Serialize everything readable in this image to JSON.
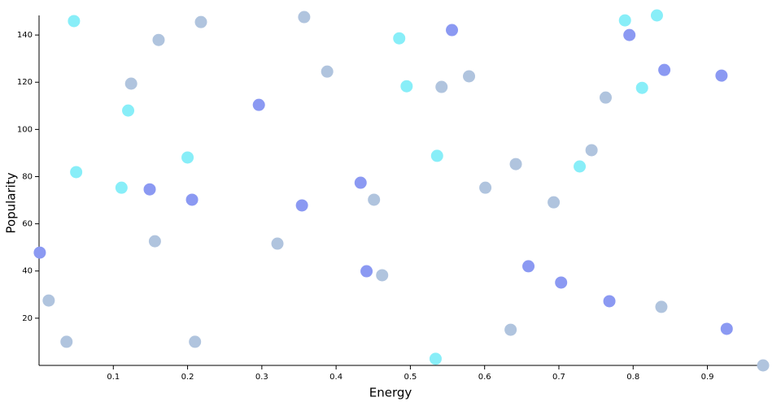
{
  "chart_data": {
    "type": "scatter",
    "x_label": "Energy",
    "y_label": "Popularity",
    "xlim": [
      0,
      0.975
    ],
    "ylim": [
      0,
      148.3
    ],
    "xticks": [
      0.1,
      0.2,
      0.3,
      0.4,
      0.5,
      0.6,
      0.7,
      0.8,
      0.9
    ],
    "yticks": [
      20,
      40,
      60,
      80,
      100,
      120,
      140
    ],
    "series": [
      {
        "color": "#88eef8",
        "x": [
          0.047,
          0.05,
          0.111,
          0.12,
          0.2,
          0.485,
          0.495,
          0.536,
          0.534,
          0.728,
          0.789,
          0.812,
          0.832
        ],
        "values": [
          145.9,
          81.9,
          75.3,
          108.0,
          88.1,
          138.6,
          118.3,
          88.8,
          2.8,
          84.3,
          146.2,
          117.6,
          148.3
        ]
      },
      {
        "color": "#8b99f2",
        "x": [
          0.001,
          0.149,
          0.206,
          0.296,
          0.354,
          0.433,
          0.441,
          0.556,
          0.659,
          0.703,
          0.768,
          0.795,
          0.842,
          0.919,
          0.926
        ],
        "values": [
          47.8,
          74.6,
          70.2,
          110.4,
          67.8,
          77.4,
          39.9,
          142.1,
          42.0,
          35.1,
          27.2,
          140.0,
          125.2,
          122.8,
          15.5
        ]
      },
      {
        "color": "#b0c4de",
        "x": [
          0.013,
          0.037,
          0.156,
          0.161,
          0.124,
          0.218,
          0.21,
          0.321,
          0.357,
          0.388,
          0.451,
          0.462,
          0.542,
          0.579,
          0.601,
          0.635,
          0.642,
          0.693,
          0.744,
          0.763,
          0.838,
          0.975
        ],
        "values": [
          27.5,
          10.0,
          52.6,
          137.9,
          119.4,
          145.5,
          10.0,
          51.6,
          147.6,
          124.5,
          70.2,
          38.2,
          118.0,
          122.5,
          75.3,
          15.1,
          85.3,
          69.1,
          91.2,
          113.5,
          24.8,
          0.0
        ]
      }
    ]
  }
}
